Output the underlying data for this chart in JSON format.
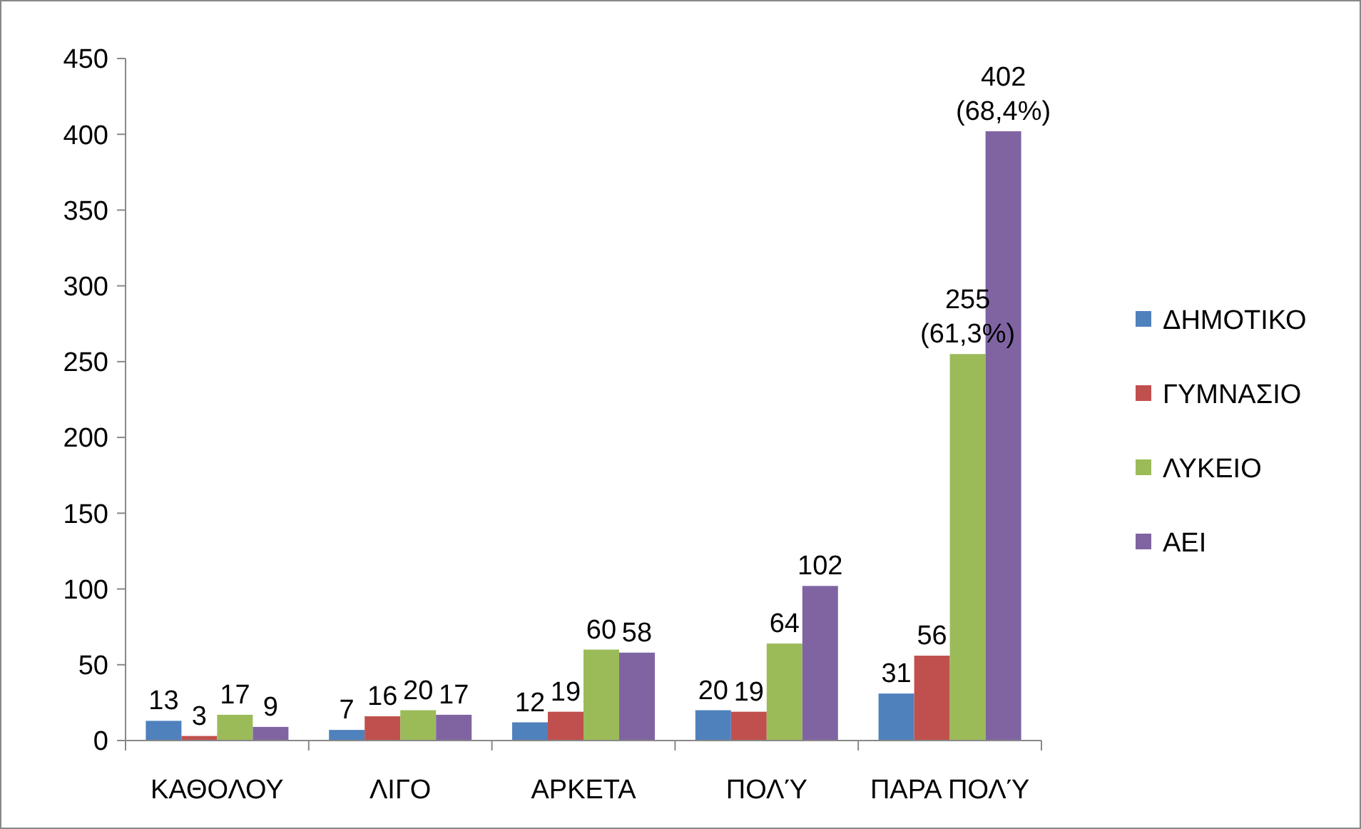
{
  "chart_data": {
    "type": "bar",
    "categories": [
      "ΚΑΘΟΛΟΥ",
      "ΛΙΓΟ",
      "ΑΡΚΕΤΑ",
      "ΠΟΛΎ",
      "ΠΑΡΑ ΠΟΛΎ"
    ],
    "series": [
      {
        "name": "ΔΗΜΟΤΙΚΟ",
        "color": "#4f81bd",
        "values": [
          13,
          7,
          12,
          20,
          31
        ],
        "value_labels": [
          "13",
          "7",
          "12",
          "20",
          "31"
        ]
      },
      {
        "name": "ΓΥΜΝΑΣΙΟ",
        "color": "#c0504d",
        "values": [
          3,
          16,
          19,
          19,
          56
        ],
        "value_labels": [
          "3",
          "16",
          "19",
          "19",
          "56"
        ]
      },
      {
        "name": "ΛΥΚΕΙΟ",
        "color": "#9bbb59",
        "values": [
          17,
          20,
          60,
          64,
          255
        ],
        "value_labels": [
          "17",
          "20",
          "60",
          "64",
          "255\n(61,3%)"
        ]
      },
      {
        "name": "ΑΕΙ",
        "color": "#8064a2",
        "values": [
          9,
          17,
          58,
          102,
          402
        ],
        "value_labels": [
          "9",
          "17",
          "58",
          "102",
          "402\n(68,4%)"
        ]
      }
    ],
    "ylim": [
      0,
      450
    ],
    "yticks": [
      0,
      50,
      100,
      150,
      200,
      250,
      300,
      350,
      400,
      450
    ],
    "grid": false,
    "legend": "right"
  }
}
